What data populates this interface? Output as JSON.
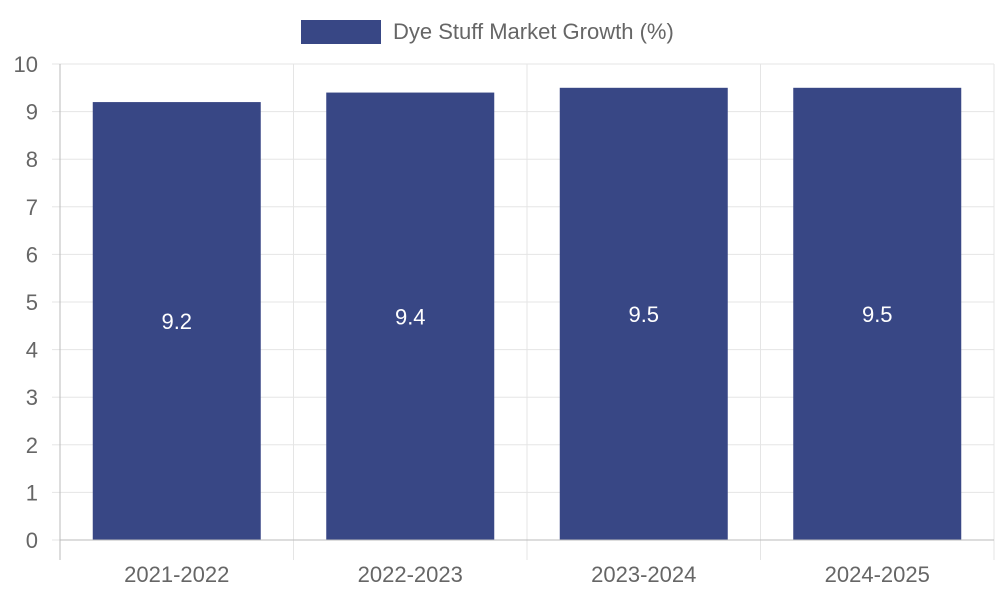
{
  "chart_data": {
    "type": "bar",
    "categories": [
      "2021-2022",
      "2022-2023",
      "2023-2024",
      "2024-2025"
    ],
    "series": [
      {
        "name": "Dye Stuff Market Growth (%)",
        "values": [
          9.2,
          9.4,
          9.5,
          9.5
        ],
        "color": "#384785"
      }
    ],
    "ylim": [
      0,
      10
    ],
    "y_ticks": [
      0,
      1,
      2,
      3,
      4,
      5,
      6,
      7,
      8,
      9,
      10
    ],
    "data_labels": [
      "9.2",
      "9.4",
      "9.5",
      "9.5"
    ],
    "grid": true,
    "legend_position": "top-center"
  },
  "colors": {
    "bar": "#384785",
    "grid": "#e5e5e5",
    "axis": "#bbbbbb",
    "text": "#666666",
    "label": "#ffffff"
  }
}
